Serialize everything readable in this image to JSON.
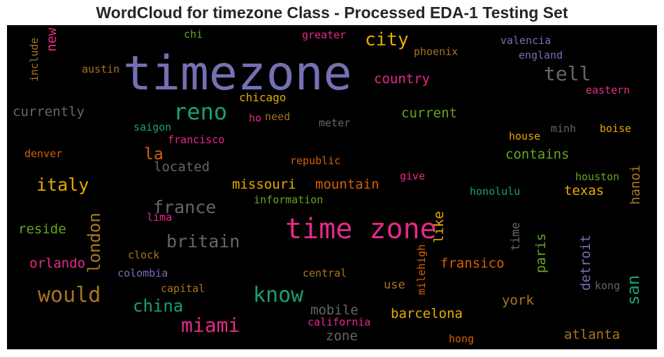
{
  "chart_data": {
    "type": "wordcloud",
    "title": "WordCloud for timezone Class - Processed EDA-1 Testing Set",
    "background": "#000000",
    "words": [
      {
        "text": "timezone",
        "size": 68,
        "color": "#7570b3",
        "rotate": 0
      },
      {
        "text": "time zone",
        "size": 40,
        "color": "#e7298a",
        "rotate": 0
      },
      {
        "text": "reno",
        "size": 32,
        "color": "#1b9e77",
        "rotate": 0
      },
      {
        "text": "would",
        "size": 30,
        "color": "#a6761d",
        "rotate": 0
      },
      {
        "text": "know",
        "size": 30,
        "color": "#1b9e77",
        "rotate": 0
      },
      {
        "text": "miami",
        "size": 28,
        "color": "#e7298a",
        "rotate": 0
      },
      {
        "text": "tell",
        "size": 28,
        "color": "#666666",
        "rotate": 0
      },
      {
        "text": "city",
        "size": 26,
        "color": "#e6ab02",
        "rotate": 0
      },
      {
        "text": "italy",
        "size": 25,
        "color": "#e6ab02",
        "rotate": 0
      },
      {
        "text": "france",
        "size": 25,
        "color": "#666666",
        "rotate": 0
      },
      {
        "text": "britain",
        "size": 25,
        "color": "#666666",
        "rotate": 0
      },
      {
        "text": "china",
        "size": 24,
        "color": "#1b9e77",
        "rotate": 0
      },
      {
        "text": "london",
        "size": 24,
        "color": "#a6761d",
        "rotate": -90
      },
      {
        "text": "san",
        "size": 24,
        "color": "#1b9e77",
        "rotate": -90
      },
      {
        "text": "la",
        "size": 23,
        "color": "#d95f02",
        "rotate": 0
      },
      {
        "text": "located",
        "size": 19,
        "color": "#666666",
        "rotate": 0
      },
      {
        "text": "currently",
        "size": 19,
        "color": "#666666",
        "rotate": 0
      },
      {
        "text": "country",
        "size": 19,
        "color": "#e7298a",
        "rotate": 0
      },
      {
        "text": "current",
        "size": 19,
        "color": "#66a61e",
        "rotate": 0
      },
      {
        "text": "contains",
        "size": 19,
        "color": "#66a61e",
        "rotate": 0
      },
      {
        "text": "missouri",
        "size": 19,
        "color": "#e6ab02",
        "rotate": 0
      },
      {
        "text": "mountain",
        "size": 19,
        "color": "#d95f02",
        "rotate": 0
      },
      {
        "text": "texas",
        "size": 19,
        "color": "#e6ab02",
        "rotate": 0
      },
      {
        "text": "barcelona",
        "size": 19,
        "color": "#e6ab02",
        "rotate": 0
      },
      {
        "text": "mobile",
        "size": 19,
        "color": "#666666",
        "rotate": 0
      },
      {
        "text": "zone",
        "size": 19,
        "color": "#666666",
        "rotate": 0
      },
      {
        "text": "reside",
        "size": 19,
        "color": "#66a61e",
        "rotate": 0
      },
      {
        "text": "orlando",
        "size": 19,
        "color": "#e7298a",
        "rotate": 0
      },
      {
        "text": "fransico",
        "size": 19,
        "color": "#d95f02",
        "rotate": 0
      },
      {
        "text": "york",
        "size": 19,
        "color": "#a6761d",
        "rotate": 0
      },
      {
        "text": "atlanta",
        "size": 19,
        "color": "#a6761d",
        "rotate": 0
      },
      {
        "text": "new",
        "size": 19,
        "color": "#e7298a",
        "rotate": -90
      },
      {
        "text": "like",
        "size": 19,
        "color": "#e6ab02",
        "rotate": -90
      },
      {
        "text": "paris",
        "size": 19,
        "color": "#66a61e",
        "rotate": -90
      },
      {
        "text": "detroit",
        "size": 19,
        "color": "#7570b3",
        "rotate": -90
      },
      {
        "text": "hanoi",
        "size": 19,
        "color": "#a6761d",
        "rotate": -90
      },
      {
        "text": "time",
        "size": 17,
        "color": "#666666",
        "rotate": -90
      },
      {
        "text": "use",
        "size": 17,
        "color": "#a6761d",
        "rotate": 0
      },
      {
        "text": "chicago",
        "size": 16,
        "color": "#e6ab02",
        "rotate": 0
      },
      {
        "text": "austin",
        "size": 15,
        "color": "#a6761d",
        "rotate": 0
      },
      {
        "text": "need",
        "size": 15,
        "color": "#a6761d",
        "rotate": 0
      },
      {
        "text": "ho",
        "size": 15,
        "color": "#e7298a",
        "rotate": 0
      },
      {
        "text": "meter",
        "size": 15,
        "color": "#666666",
        "rotate": 0
      },
      {
        "text": "saigon",
        "size": 15,
        "color": "#1b9e77",
        "rotate": 0
      },
      {
        "text": "francisco",
        "size": 15,
        "color": "#e7298a",
        "rotate": 0
      },
      {
        "text": "denver",
        "size": 15,
        "color": "#d95f02",
        "rotate": 0
      },
      {
        "text": "republic",
        "size": 15,
        "color": "#d95f02",
        "rotate": 0
      },
      {
        "text": "give",
        "size": 15,
        "color": "#e7298a",
        "rotate": 0
      },
      {
        "text": "honolulu",
        "size": 15,
        "color": "#1b9e77",
        "rotate": 0
      },
      {
        "text": "houston",
        "size": 15,
        "color": "#66a61e",
        "rotate": 0
      },
      {
        "text": "information",
        "size": 15,
        "color": "#66a61e",
        "rotate": 0
      },
      {
        "text": "lima",
        "size": 15,
        "color": "#e7298a",
        "rotate": 0
      },
      {
        "text": "clock",
        "size": 15,
        "color": "#a6761d",
        "rotate": 0
      },
      {
        "text": "colombia",
        "size": 15,
        "color": "#7570b3",
        "rotate": 0
      },
      {
        "text": "capital",
        "size": 15,
        "color": "#a6761d",
        "rotate": 0
      },
      {
        "text": "central",
        "size": 15,
        "color": "#a6761d",
        "rotate": 0
      },
      {
        "text": "california",
        "size": 15,
        "color": "#e7298a",
        "rotate": 0
      },
      {
        "text": "hong",
        "size": 15,
        "color": "#d95f02",
        "rotate": 0
      },
      {
        "text": "kong",
        "size": 15,
        "color": "#666666",
        "rotate": 0
      },
      {
        "text": "house",
        "size": 15,
        "color": "#e6ab02",
        "rotate": 0
      },
      {
        "text": "minh",
        "size": 15,
        "color": "#666666",
        "rotate": 0
      },
      {
        "text": "boise",
        "size": 15,
        "color": "#e6ab02",
        "rotate": 0
      },
      {
        "text": "eastern",
        "size": 15,
        "color": "#e7298a",
        "rotate": 0
      },
      {
        "text": "valencia",
        "size": 15,
        "color": "#7570b3",
        "rotate": 0
      },
      {
        "text": "england",
        "size": 15,
        "color": "#7570b3",
        "rotate": 0
      },
      {
        "text": "phoenix",
        "size": 15,
        "color": "#a6761d",
        "rotate": 0
      },
      {
        "text": "greater",
        "size": 15,
        "color": "#e7298a",
        "rotate": 0
      },
      {
        "text": "chi",
        "size": 15,
        "color": "#66a61e",
        "rotate": 0
      },
      {
        "text": "include",
        "size": 15,
        "color": "#a6761d",
        "rotate": -90
      },
      {
        "text": "milehigh",
        "size": 15,
        "color": "#d95f02",
        "rotate": -90
      }
    ]
  }
}
